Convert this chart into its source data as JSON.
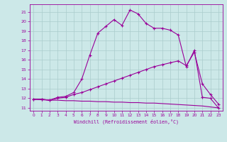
{
  "xlabel": "Windchill (Refroidissement éolien,°C)",
  "xlim": [
    -0.5,
    23.5
  ],
  "ylim": [
    10.7,
    21.8
  ],
  "yticks": [
    11,
    12,
    13,
    14,
    15,
    16,
    17,
    18,
    19,
    20,
    21
  ],
  "xticks": [
    0,
    1,
    2,
    3,
    4,
    5,
    6,
    7,
    8,
    9,
    10,
    11,
    12,
    13,
    14,
    15,
    16,
    17,
    18,
    19,
    20,
    21,
    22,
    23
  ],
  "bg_color": "#cce8e8",
  "line_color": "#990099",
  "grid_color": "#aacccc",
  "curve1_x": [
    0,
    1,
    2,
    3,
    4,
    5,
    6,
    7,
    8,
    9,
    10,
    11,
    12,
    13,
    14,
    15,
    16,
    17,
    18,
    19,
    20,
    21,
    22,
    23
  ],
  "curve1_y": [
    11.9,
    11.9,
    11.8,
    12.1,
    12.2,
    12.6,
    14.0,
    16.5,
    18.8,
    19.5,
    20.2,
    19.6,
    21.2,
    20.8,
    19.8,
    19.3,
    19.3,
    19.1,
    18.6,
    15.3,
    17.0,
    12.1,
    12.0,
    11.0
  ],
  "curve2_x": [
    0,
    1,
    2,
    3,
    4,
    5,
    6,
    7,
    8,
    9,
    10,
    11,
    12,
    13,
    14,
    15,
    16,
    17,
    18,
    19,
    20,
    21,
    22,
    23
  ],
  "curve2_y": [
    11.9,
    11.9,
    11.8,
    12.0,
    12.1,
    12.4,
    12.6,
    12.9,
    13.2,
    13.5,
    13.8,
    14.1,
    14.4,
    14.7,
    15.0,
    15.3,
    15.5,
    15.7,
    15.9,
    15.4,
    16.8,
    13.5,
    12.4,
    11.4
  ],
  "curve3_x": [
    0,
    1,
    2,
    3,
    4,
    5,
    6,
    7,
    8,
    9,
    10,
    11,
    12,
    13,
    14,
    15,
    16,
    17,
    18,
    19,
    20,
    21,
    22,
    23
  ],
  "curve3_y": [
    11.9,
    11.85,
    11.8,
    11.8,
    11.75,
    11.75,
    11.7,
    11.7,
    11.65,
    11.65,
    11.6,
    11.6,
    11.55,
    11.55,
    11.5,
    11.5,
    11.45,
    11.4,
    11.35,
    11.3,
    11.25,
    11.2,
    11.1,
    11.0
  ]
}
